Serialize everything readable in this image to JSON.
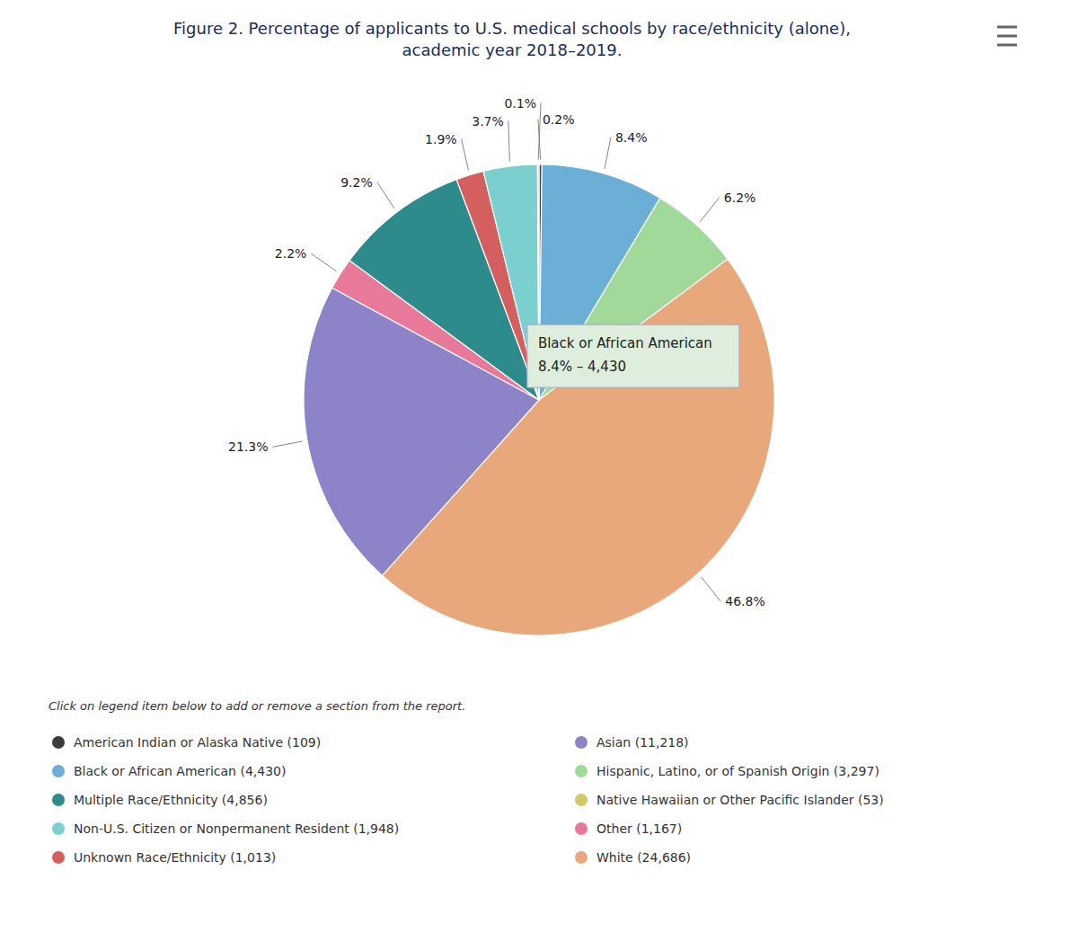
{
  "chart_data": {
    "type": "pie",
    "title": "Figure 2. Percentage of applicants to U.S. medical schools by race/ethnicity (alone),\nacademic year 2018–2019.",
    "categories": [
      "American Indian or Alaska Native (109)",
      "Black or African American (4,430)",
      "Hispanic, Latino, or of Spanish Origin (3,297)",
      "White (24,686)",
      "Asian (11,218)",
      "Other (1,167)",
      "Multiple Race/Ethnicity (4,856)",
      "Unknown Race/Ethnicity (1,013)",
      "Non-U.S. Citizen or Nonpermanent Resident (1,948)",
      "Native Hawaiian or Other Pacific Islander (53)"
    ],
    "values": [
      0.2,
      8.4,
      6.2,
      46.8,
      21.3,
      2.2,
      9.2,
      1.9,
      3.7,
      0.1
    ],
    "value_labels": [
      "0.2%",
      "8.4%",
      "6.2%",
      "46.8%",
      "21.3%",
      "2.2%",
      "9.2%",
      "1.9%",
      "3.7%",
      "0.1%"
    ],
    "colors": [
      "#3d3d3d",
      "#6baed6",
      "#a1d99b",
      "#e8a87c",
      "#8c83c9",
      "#e8799a",
      "#2d8b8b",
      "#d45f5f",
      "#7bcfcf",
      "#d4c86a"
    ],
    "data_labels": true,
    "annotations": [
      "Black or African American",
      "8.4% – 4,430"
    ],
    "note": "Click on legend item below to add or remove a section from the report.",
    "legend": "bottom"
  }
}
